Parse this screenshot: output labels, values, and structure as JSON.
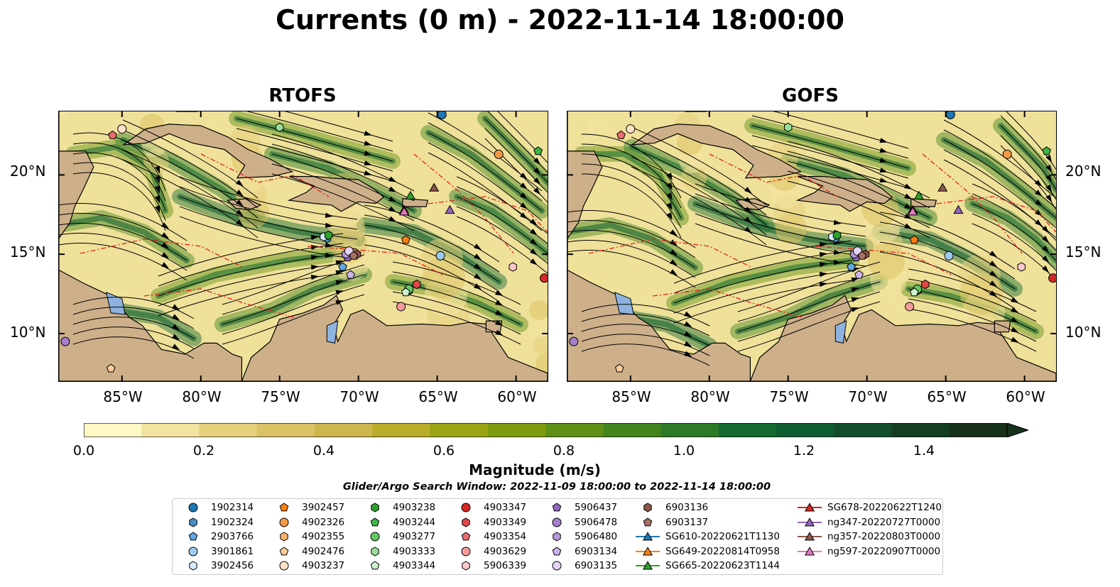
{
  "title": "Currents (0 m) - 2022-11-14 18:00:00",
  "panels": [
    {
      "name": "RTOFS"
    },
    {
      "name": "GOFS"
    }
  ],
  "map": {
    "lon_range": [
      -89,
      -58
    ],
    "lat_range": [
      7,
      24
    ],
    "lat_ticks": [
      "20°N",
      "15°N",
      "10°N"
    ],
    "lon_ticks": [
      "85°W",
      "80°W",
      "75°W",
      "70°W",
      "65°W",
      "60°W"
    ],
    "land_color": "#cdb08a"
  },
  "colorbar": {
    "label": "Magnitude (m/s)",
    "ticks": [
      "0.0",
      "0.2",
      "0.4",
      "0.6",
      "0.8",
      "1.0",
      "1.2",
      "1.4"
    ],
    "range": [
      0,
      1.5
    ],
    "colors": [
      "#fdf8c6",
      "#f2e4a0",
      "#e6d07c",
      "#dcc266",
      "#cdb64c",
      "#b9ad2a",
      "#9aa415",
      "#7f9b0e",
      "#5f9016",
      "#43851c",
      "#2c7a26",
      "#136b30",
      "#0d5e30",
      "#124e2a",
      "#153e22",
      "#17301a"
    ]
  },
  "window_text": "Glider/Argo Search Window: 2022-11-09 18:00:00 to 2022-11-14 18:00:00",
  "legend": [
    {
      "label": "1902314",
      "marker": "circle",
      "color": "#1f77b4"
    },
    {
      "label": "1902324",
      "marker": "hexagon",
      "color": "#4a8fc4"
    },
    {
      "label": "2903766",
      "marker": "pentagon",
      "color": "#5fa7e0"
    },
    {
      "label": "3901861",
      "marker": "circle",
      "color": "#9ccaf0"
    },
    {
      "label": "3902456",
      "marker": "hexagon",
      "color": "#d6ecfb"
    },
    {
      "label": "3902457",
      "marker": "pentagon",
      "color": "#ff7f0e"
    },
    {
      "label": "4902326",
      "marker": "circle",
      "color": "#f59a45"
    },
    {
      "label": "4902355",
      "marker": "hexagon",
      "color": "#f7b26e"
    },
    {
      "label": "4902476",
      "marker": "pentagon",
      "color": "#fbcb9c"
    },
    {
      "label": "4903237",
      "marker": "circle",
      "color": "#ffe3c7"
    },
    {
      "label": "4903238",
      "marker": "hexagon",
      "color": "#2ca02c"
    },
    {
      "label": "4903244",
      "marker": "pentagon",
      "color": "#3cb544"
    },
    {
      "label": "4903277",
      "marker": "circle",
      "color": "#63c863"
    },
    {
      "label": "4903333",
      "marker": "hexagon",
      "color": "#98de98"
    },
    {
      "label": "4903344",
      "marker": "pentagon",
      "color": "#cdf2cd"
    },
    {
      "label": "4903347",
      "marker": "circle",
      "color": "#d62728"
    },
    {
      "label": "4903349",
      "marker": "hexagon",
      "color": "#e04848"
    },
    {
      "label": "4903354",
      "marker": "pentagon",
      "color": "#ea6c6c"
    },
    {
      "label": "4903629",
      "marker": "circle",
      "color": "#f49a9a"
    },
    {
      "label": "5906339",
      "marker": "hexagon",
      "color": "#fccaca"
    },
    {
      "label": "5906437",
      "marker": "pentagon",
      "color": "#9467bd"
    },
    {
      "label": "5906478",
      "marker": "circle",
      "color": "#a47fcb"
    },
    {
      "label": "5906480",
      "marker": "hexagon",
      "color": "#b897dc"
    },
    {
      "label": "6903134",
      "marker": "pentagon",
      "color": "#cdb4ea"
    },
    {
      "label": "6903135",
      "marker": "circle",
      "color": "#e5d3f6"
    },
    {
      "label": "6903136",
      "marker": "hexagon",
      "color": "#8c564b"
    },
    {
      "label": "6903137",
      "marker": "pentagon",
      "color": "#a67165"
    },
    {
      "label": "SG610-20220621T1130",
      "marker": "triangle-line",
      "color": "#1f77b4"
    },
    {
      "label": "SG649-20220814T0958",
      "marker": "triangle-line",
      "color": "#ff7f0e"
    },
    {
      "label": "SG665-20220623T1144",
      "marker": "triangle-line",
      "color": "#2ca02c"
    },
    {
      "label": "SG678-20220622T1240",
      "marker": "triangle-line",
      "color": "#d62728"
    },
    {
      "label": "ng347-20220727T0000",
      "marker": "triangle-line",
      "color": "#9467bd"
    },
    {
      "label": "ng357-20220803T0000",
      "marker": "triangle-line",
      "color": "#8c564b"
    },
    {
      "label": "ng597-20220907T0000",
      "marker": "triangle-line",
      "color": "#e377c2"
    }
  ],
  "platforms": [
    {
      "id": "1902314",
      "lon": -64.7,
      "lat": 23.8
    },
    {
      "id": "1902324",
      "lon": -72.0,
      "lat": 16.0
    },
    {
      "id": "2903766",
      "lon": -71.0,
      "lat": 14.2
    },
    {
      "id": "3901861",
      "lon": -64.8,
      "lat": 14.9
    },
    {
      "id": "3902456",
      "lon": -72.2,
      "lat": 16.1
    },
    {
      "id": "3902457",
      "lon": -67.0,
      "lat": 15.9
    },
    {
      "id": "4902326",
      "lon": -61.1,
      "lat": 21.3
    },
    {
      "id": "4902355",
      "lon": -66.8,
      "lat": 12.7
    },
    {
      "id": "4902476",
      "lon": -85.7,
      "lat": 7.8
    },
    {
      "id": "4903237",
      "lon": -85.0,
      "lat": 22.9
    },
    {
      "id": "4903238",
      "lon": -71.9,
      "lat": 16.2
    },
    {
      "id": "4903244",
      "lon": -58.6,
      "lat": 21.5
    },
    {
      "id": "4903277",
      "lon": -66.8,
      "lat": 12.8
    },
    {
      "id": "4903333",
      "lon": -75.0,
      "lat": 23.0
    },
    {
      "id": "4903344",
      "lon": -67.0,
      "lat": 12.6
    },
    {
      "id": "4903347",
      "lon": -58.2,
      "lat": 13.5
    },
    {
      "id": "4903349",
      "lon": -66.3,
      "lat": 13.1
    },
    {
      "id": "4903354",
      "lon": -85.6,
      "lat": 22.5
    },
    {
      "id": "4903629",
      "lon": -67.3,
      "lat": 11.7
    },
    {
      "id": "5906339",
      "lon": -60.2,
      "lat": 14.2
    },
    {
      "id": "5906437",
      "lon": -70.7,
      "lat": 14.8
    },
    {
      "id": "5906478",
      "lon": -88.6,
      "lat": 9.5
    },
    {
      "id": "5906480",
      "lon": -70.8,
      "lat": 15.0
    },
    {
      "id": "6903134",
      "lon": -70.5,
      "lat": 13.7
    },
    {
      "id": "6903135",
      "lon": -70.6,
      "lat": 15.2
    },
    {
      "id": "6903136",
      "lon": -70.1,
      "lat": 15.0
    },
    {
      "id": "6903137",
      "lon": -70.3,
      "lat": 14.9
    },
    {
      "id": "SG665-20220623T1144",
      "lon": -66.7,
      "lat": 18.7
    },
    {
      "id": "SG678-20220622T1240",
      "lon": -67.1,
      "lat": 17.8
    },
    {
      "id": "ng347-20220727T0000",
      "lon": -64.2,
      "lat": 17.8
    },
    {
      "id": "ng357-20220803T0000",
      "lon": -65.2,
      "lat": 19.2
    },
    {
      "id": "ng597-20220907T0000",
      "lon": -67.1,
      "lat": 17.7
    }
  ]
}
